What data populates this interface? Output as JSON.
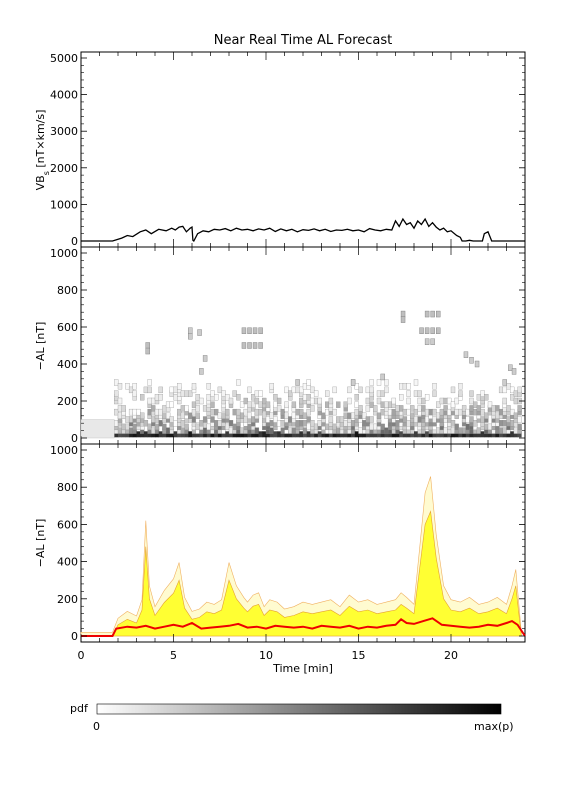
{
  "chart_data": [
    {
      "type": "line",
      "title": "Near Real Time AL Forecast",
      "ylabel_main": "VB",
      "ylabel_sub": "s",
      "ylabel_rest": " [nT×km/s]",
      "xlim": [
        0,
        24
      ],
      "ylim": [
        0,
        5000
      ],
      "yticks": [
        "0",
        "1000",
        "2000",
        "3000",
        "4000",
        "5000"
      ],
      "grid": false,
      "series": [
        {
          "color": "#000000",
          "x": [
            0,
            1.7,
            2.2,
            2.5,
            2.8,
            3.2,
            3.5,
            3.8,
            4.2,
            4.6,
            4.9,
            5.1,
            5.3,
            5.5,
            5.7,
            5.9,
            6.0,
            6.05,
            6.1,
            6.3,
            6.6,
            6.9,
            7.2,
            7.5,
            7.8,
            8.1,
            8.4,
            8.7,
            9.0,
            9.3,
            9.6,
            9.9,
            10.2,
            10.5,
            10.8,
            11.1,
            11.4,
            11.7,
            12.0,
            12.3,
            12.6,
            12.9,
            13.2,
            13.5,
            13.8,
            14.1,
            14.4,
            14.7,
            15.0,
            15.3,
            15.6,
            15.9,
            16.2,
            16.5,
            16.8,
            17.0,
            17.2,
            17.4,
            17.6,
            17.8,
            18.0,
            18.2,
            18.4,
            18.6,
            18.8,
            19.0,
            19.2,
            19.4,
            19.6,
            19.8,
            20.0,
            20.3,
            20.5,
            20.6,
            20.8,
            21.0,
            21.2,
            21.5,
            21.7,
            21.8,
            22.0,
            22.2,
            22.5,
            23.0,
            24
          ],
          "values": [
            0,
            0,
            80,
            150,
            120,
            250,
            300,
            200,
            320,
            280,
            350,
            300,
            380,
            400,
            250,
            350,
            380,
            20,
            0,
            200,
            280,
            250,
            320,
            300,
            340,
            280,
            350,
            300,
            320,
            280,
            330,
            300,
            350,
            260,
            330,
            280,
            320,
            250,
            310,
            290,
            330,
            280,
            320,
            260,
            300,
            290,
            320,
            280,
            300,
            250,
            340,
            300,
            280,
            320,
            300,
            550,
            400,
            600,
            450,
            500,
            350,
            550,
            450,
            600,
            400,
            500,
            380,
            300,
            350,
            250,
            280,
            150,
            100,
            0,
            0,
            20,
            0,
            0,
            0,
            200,
            250,
            0,
            0,
            0,
            0
          ]
        }
      ]
    },
    {
      "type": "heatmap",
      "ylabel": "−AL [nT]",
      "xlim": [
        0,
        24
      ],
      "ylim": [
        0,
        1000
      ],
      "yticks": [
        "0",
        "200",
        "400",
        "600",
        "800",
        "1000"
      ],
      "cells": [
        {
          "x": 3.5,
          "y": 500,
          "p": 0.25
        },
        {
          "x": 3.5,
          "y": 470,
          "p": 0.25
        },
        {
          "x": 5.8,
          "y": 580,
          "p": 0.2
        },
        {
          "x": 5.8,
          "y": 550,
          "p": 0.2
        },
        {
          "x": 6.3,
          "y": 570,
          "p": 0.2
        },
        {
          "x": 6.6,
          "y": 430,
          "p": 0.2
        },
        {
          "x": 6.4,
          "y": 360,
          "p": 0.2
        },
        {
          "x": 8.7,
          "y": 580,
          "p": 0.25
        },
        {
          "x": 9.0,
          "y": 580,
          "p": 0.25
        },
        {
          "x": 9.3,
          "y": 580,
          "p": 0.25
        },
        {
          "x": 9.6,
          "y": 580,
          "p": 0.25
        },
        {
          "x": 8.7,
          "y": 500,
          "p": 0.25
        },
        {
          "x": 9.0,
          "y": 500,
          "p": 0.25
        },
        {
          "x": 9.3,
          "y": 500,
          "p": 0.25
        },
        {
          "x": 9.6,
          "y": 500,
          "p": 0.25
        },
        {
          "x": 17.3,
          "y": 670,
          "p": 0.25
        },
        {
          "x": 17.3,
          "y": 640,
          "p": 0.25
        },
        {
          "x": 18.6,
          "y": 670,
          "p": 0.25
        },
        {
          "x": 18.9,
          "y": 670,
          "p": 0.25
        },
        {
          "x": 19.2,
          "y": 670,
          "p": 0.25
        },
        {
          "x": 18.3,
          "y": 580,
          "p": 0.25
        },
        {
          "x": 18.6,
          "y": 580,
          "p": 0.25
        },
        {
          "x": 18.9,
          "y": 580,
          "p": 0.25
        },
        {
          "x": 19.2,
          "y": 580,
          "p": 0.25
        },
        {
          "x": 18.6,
          "y": 520,
          "p": 0.2
        },
        {
          "x": 18.9,
          "y": 520,
          "p": 0.2
        },
        {
          "x": 20.7,
          "y": 450,
          "p": 0.2
        },
        {
          "x": 21.0,
          "y": 420,
          "p": 0.2
        },
        {
          "x": 21.3,
          "y": 400,
          "p": 0.2
        },
        {
          "x": 16.2,
          "y": 330,
          "p": 0.2
        },
        {
          "x": 11.6,
          "y": 300,
          "p": 0.2
        },
        {
          "x": 14.6,
          "y": 300,
          "p": 0.2
        },
        {
          "x": 23.1,
          "y": 380,
          "p": 0.2
        },
        {
          "x": 23.3,
          "y": 360,
          "p": 0.2
        },
        {
          "x": 22.8,
          "y": 300,
          "p": 0.2
        }
      ]
    },
    {
      "type": "area",
      "ylabel": "−AL [nT]",
      "xlabel": "Time [min]",
      "xlim": [
        0,
        24
      ],
      "ylim": [
        0,
        1000
      ],
      "xticks": [
        "0",
        "5",
        "10",
        "15",
        "20"
      ],
      "yticks": [
        "0",
        "200",
        "400",
        "600",
        "800",
        "1000"
      ],
      "series": [
        {
          "color": "#ffff33",
          "x": [
            0,
            1.7,
            2.0,
            2.5,
            3.0,
            3.3,
            3.5,
            3.7,
            4.0,
            4.5,
            5.0,
            5.3,
            5.6,
            6.0,
            6.4,
            6.8,
            7.2,
            7.6,
            8.0,
            8.4,
            8.8,
            9.0,
            9.3,
            9.6,
            9.9,
            10.2,
            10.6,
            11.0,
            11.5,
            12.0,
            12.5,
            13.0,
            13.5,
            14.0,
            14.5,
            15.0,
            15.5,
            16.0,
            16.5,
            17.0,
            17.3,
            17.6,
            18.0,
            18.3,
            18.6,
            18.9,
            19.2,
            19.6,
            20.0,
            20.5,
            21.0,
            21.5,
            22.0,
            22.5,
            23.0,
            23.3,
            23.5,
            23.8
          ],
          "values": [
            0,
            0,
            60,
            90,
            70,
            140,
            480,
            200,
            110,
            180,
            230,
            300,
            150,
            90,
            100,
            130,
            120,
            140,
            300,
            200,
            150,
            130,
            160,
            170,
            110,
            140,
            130,
            100,
            110,
            130,
            120,
            130,
            140,
            110,
            160,
            130,
            140,
            120,
            130,
            140,
            170,
            150,
            120,
            360,
            600,
            670,
            420,
            200,
            140,
            130,
            150,
            120,
            130,
            150,
            120,
            200,
            270,
            0
          ]
        },
        {
          "color": "#ee0000",
          "x": [
            0,
            1.7,
            1.9,
            2.5,
            3.0,
            3.5,
            4.0,
            4.5,
            5.0,
            5.5,
            6.0,
            6.5,
            7.0,
            7.5,
            8.0,
            8.5,
            9.0,
            9.5,
            10.0,
            10.5,
            11.0,
            11.5,
            12.0,
            12.5,
            13.0,
            13.5,
            14.0,
            14.5,
            15.0,
            15.5,
            16.0,
            16.5,
            17.0,
            17.3,
            17.6,
            18.0,
            18.5,
            19.0,
            19.5,
            20.0,
            20.5,
            21.0,
            21.5,
            22.0,
            22.5,
            23.0,
            23.3,
            23.6,
            24
          ],
          "values": [
            0,
            0,
            40,
            50,
            45,
            55,
            40,
            50,
            60,
            50,
            70,
            40,
            45,
            50,
            55,
            65,
            45,
            50,
            40,
            55,
            50,
            45,
            50,
            40,
            55,
            50,
            45,
            55,
            40,
            50,
            45,
            55,
            60,
            90,
            70,
            65,
            80,
            95,
            60,
            55,
            50,
            45,
            50,
            60,
            55,
            70,
            80,
            60,
            0
          ]
        }
      ]
    }
  ],
  "colorbar": {
    "label": "pdf",
    "min_label": "0",
    "max_label": "max(p)"
  }
}
